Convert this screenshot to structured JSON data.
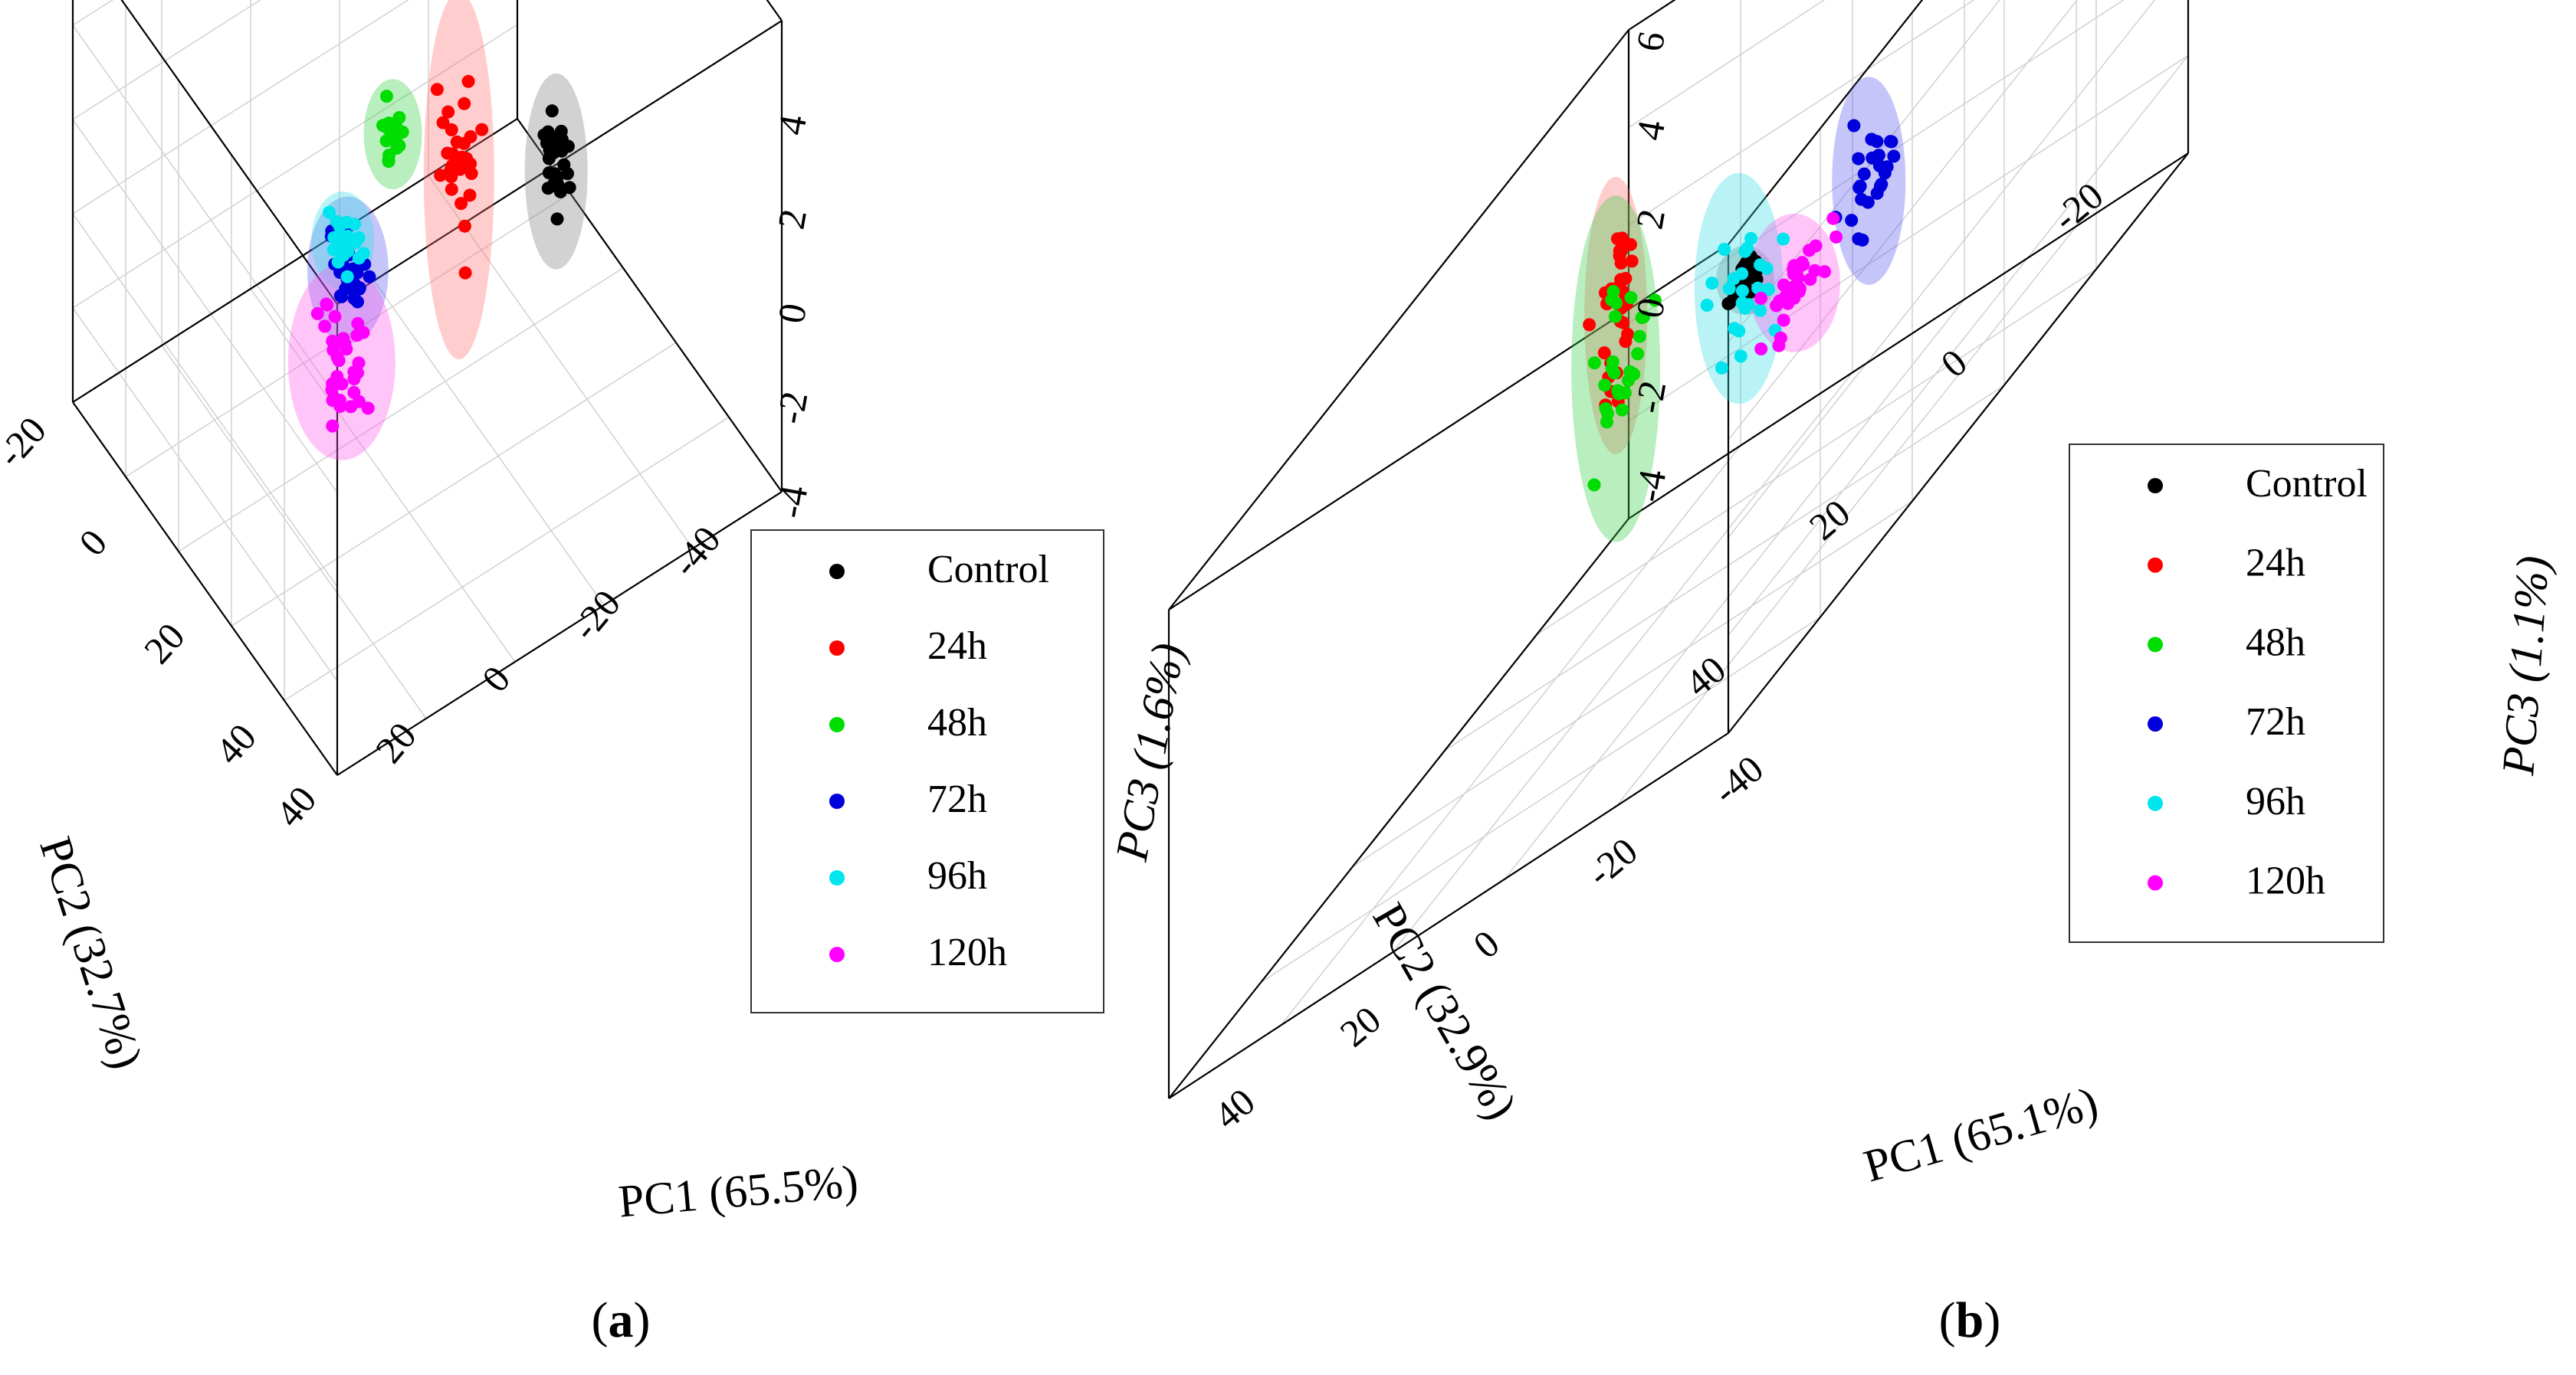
{
  "figure": {
    "panels": [
      {
        "caption_open": "(",
        "caption_letter": "a",
        "caption_close": ")"
      },
      {
        "caption_open": "(",
        "caption_letter": "b",
        "caption_close": ")"
      }
    ]
  },
  "chart_data": [
    {
      "type": "scatter",
      "title": "",
      "xlabel": "PC1 (65.5%)",
      "ylabel": "PC2 (32.7%)",
      "zlabel": "PC3 (1.6%)",
      "xlim": [
        -40,
        40
      ],
      "ylim": [
        -28,
        40
      ],
      "zlim": [
        -4,
        6
      ],
      "x_ticks": [
        "40",
        "20",
        "0",
        "-20",
        "-40"
      ],
      "y_ticks": [
        "-20",
        "0",
        "20",
        "40"
      ],
      "z_ticks": [
        "-4",
        "-2",
        "0",
        "2",
        "4"
      ],
      "legend": [
        "Control",
        "24h",
        "48h",
        "72h",
        "96h",
        "120h"
      ],
      "legend_position": "right",
      "series": [
        {
          "name": "Control",
          "color": "#000000",
          "ellipse_color": "#7a7a7a",
          "center": [
            5,
            -20,
            4.5
          ],
          "spread": [
            1.5,
            2.0,
            0.8
          ],
          "n": 28
        },
        {
          "name": "24h",
          "color": "#ff0000",
          "ellipse_color": "#ff6b6b",
          "center": [
            5,
            5,
            1.5
          ],
          "spread": [
            1.5,
            2.5,
            1.5
          ],
          "n": 30
        },
        {
          "name": "48h",
          "color": "#00dd00",
          "ellipse_color": "#33cc44",
          "center": [
            5,
            22,
            0.4
          ],
          "spread": [
            1.5,
            1.5,
            0.45
          ],
          "n": 20
        },
        {
          "name": "72h",
          "color": "#0000dd",
          "ellipse_color": "#5555ee",
          "center": [
            -15,
            5,
            1.0
          ],
          "spread": [
            2.0,
            2.5,
            0.6
          ],
          "n": 26
        },
        {
          "name": "96h",
          "color": "#00e5ee",
          "ellipse_color": "#33dde6",
          "center": [
            -18,
            2,
            2.2
          ],
          "spread": [
            1.5,
            2.0,
            0.4
          ],
          "n": 28
        },
        {
          "name": "120h",
          "color": "#ff00ff",
          "ellipse_color": "#ff55ee",
          "center": [
            -28,
            -12,
            2.0
          ],
          "spread": [
            2.5,
            3.5,
            0.8
          ],
          "n": 32
        }
      ]
    },
    {
      "type": "scatter",
      "title": "",
      "xlabel": "PC1 (65.1%)",
      "ylabel": "PC2 (32.9%)",
      "zlabel": "PC3 (1.1%)",
      "xlim": [
        -50,
        50
      ],
      "ylim": [
        -28,
        40
      ],
      "zlim": [
        -5,
        6
      ],
      "x_ticks": [
        "40",
        "20",
        "0",
        "-20",
        "-40"
      ],
      "y_ticks": [
        "-20",
        "0",
        "20",
        "40"
      ],
      "z_ticks": [
        "-4",
        "-2",
        "0",
        "2",
        "4",
        "6"
      ],
      "legend": [
        "Control",
        "24h",
        "48h",
        "72h",
        "96h",
        "120h"
      ],
      "legend_position": "right",
      "series": [
        {
          "name": "Control",
          "color": "#000000",
          "ellipse_color": "#7a7a7a",
          "center": [
            5,
            20,
            0.5
          ],
          "spread": [
            1.5,
            1.5,
            0.3
          ],
          "n": 24
        },
        {
          "name": "24h",
          "color": "#ff0000",
          "ellipse_color": "#ff6b6b",
          "center": [
            10,
            5,
            3.0
          ],
          "spread": [
            1.5,
            2.0,
            1.2
          ],
          "n": 30
        },
        {
          "name": "48h",
          "color": "#00dd00",
          "ellipse_color": "#33cc44",
          "center": [
            10,
            5,
            1.8
          ],
          "spread": [
            2.0,
            3.0,
            1.5
          ],
          "n": 26
        },
        {
          "name": "72h",
          "color": "#0000dd",
          "ellipse_color": "#5555ee",
          "center": [
            -5,
            30,
            0.0
          ],
          "spread": [
            2.0,
            2.0,
            0.9
          ],
          "n": 24
        },
        {
          "name": "96h",
          "color": "#00e5ee",
          "ellipse_color": "#33dde6",
          "center": [
            -12,
            5,
            1.8
          ],
          "spread": [
            2.0,
            3.0,
            1.0
          ],
          "n": 24
        },
        {
          "name": "120h",
          "color": "#ff00ff",
          "ellipse_color": "#ff55ee",
          "center": [
            -40,
            -10,
            2.5
          ],
          "spread": [
            2.5,
            2.5,
            0.6
          ],
          "n": 30
        }
      ]
    }
  ]
}
